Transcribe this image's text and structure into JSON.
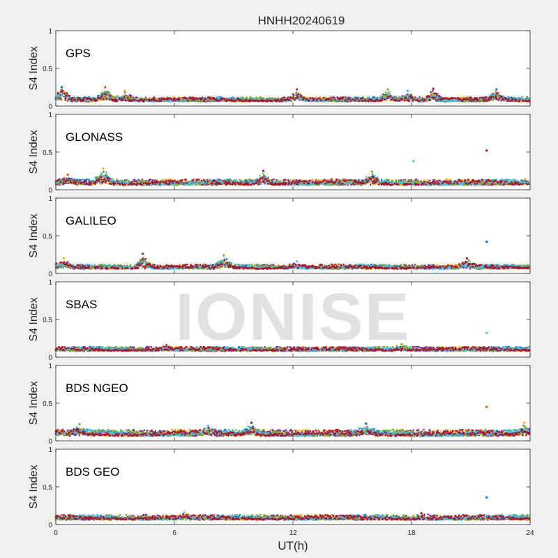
{
  "figure": {
    "title": "HNHH20240619",
    "xlabel": "UT(h)",
    "watermark": "IONISE"
  },
  "chart_data": {
    "type": "scatter",
    "title": "HNHH20240619",
    "xlabel": "UT(h)",
    "ylabel": "S4 Index",
    "xlim": [
      0,
      24
    ],
    "ylim": [
      0,
      1
    ],
    "xticks": [
      "0",
      "6",
      "12",
      "18",
      "24"
    ],
    "yticks": [
      "0",
      "0.5",
      "1"
    ],
    "grid": false,
    "series_colors": [
      "#0072BD",
      "#D95319",
      "#EDB120",
      "#7E2F8E",
      "#77AC30",
      "#4DBEEE",
      "#A2142F"
    ],
    "panels": [
      {
        "label": "GPS",
        "baseline_range": [
          0.05,
          0.12
        ],
        "peaks": [
          {
            "x": 0.3,
            "y": 0.25
          },
          {
            "x": 2.5,
            "y": 0.25
          },
          {
            "x": 3.5,
            "y": 0.2
          },
          {
            "x": 12.2,
            "y": 0.22
          },
          {
            "x": 16.8,
            "y": 0.22
          },
          {
            "x": 17.8,
            "y": 0.2
          },
          {
            "x": 19.1,
            "y": 0.23
          },
          {
            "x": 22.3,
            "y": 0.22
          }
        ]
      },
      {
        "label": "GLONASS",
        "baseline_range": [
          0.05,
          0.14
        ],
        "peaks": [
          {
            "x": 0.6,
            "y": 0.2
          },
          {
            "x": 2.4,
            "y": 0.28
          },
          {
            "x": 10.5,
            "y": 0.25
          },
          {
            "x": 16.0,
            "y": 0.24
          },
          {
            "x": 18.1,
            "y": 0.38
          },
          {
            "x": 21.8,
            "y": 0.52
          }
        ]
      },
      {
        "label": "GALILEO",
        "baseline_range": [
          0.05,
          0.12
        ],
        "peaks": [
          {
            "x": 0.4,
            "y": 0.2
          },
          {
            "x": 4.4,
            "y": 0.26
          },
          {
            "x": 8.5,
            "y": 0.24
          },
          {
            "x": 12.2,
            "y": 0.16
          },
          {
            "x": 20.8,
            "y": 0.2
          },
          {
            "x": 21.8,
            "y": 0.42
          }
        ]
      },
      {
        "label": "SBAS",
        "baseline_range": [
          0.07,
          0.14
        ],
        "peaks": [
          {
            "x": 5.6,
            "y": 0.16
          },
          {
            "x": 17.5,
            "y": 0.17
          },
          {
            "x": 21.8,
            "y": 0.32
          }
        ]
      },
      {
        "label": "BDS NGEO",
        "baseline_range": [
          0.05,
          0.15
        ],
        "peaks": [
          {
            "x": 1.2,
            "y": 0.22
          },
          {
            "x": 7.7,
            "y": 0.2
          },
          {
            "x": 9.9,
            "y": 0.24
          },
          {
            "x": 15.7,
            "y": 0.23
          },
          {
            "x": 21.8,
            "y": 0.45
          },
          {
            "x": 23.7,
            "y": 0.24
          }
        ]
      },
      {
        "label": "BDS GEO",
        "baseline_range": [
          0.05,
          0.13
        ],
        "peaks": [
          {
            "x": 6.5,
            "y": 0.16
          },
          {
            "x": 18.5,
            "y": 0.15
          },
          {
            "x": 21.8,
            "y": 0.36
          }
        ]
      }
    ]
  }
}
